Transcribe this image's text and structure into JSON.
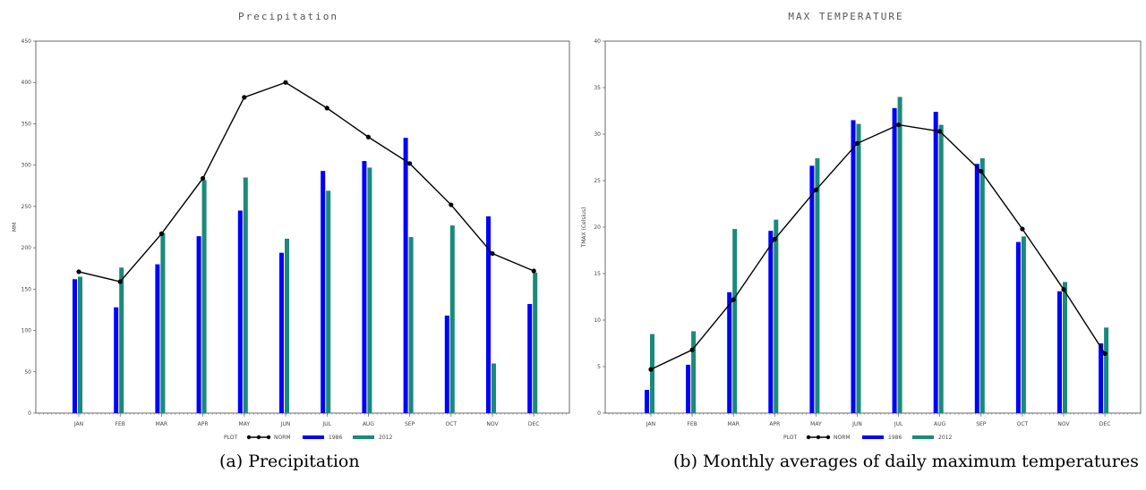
{
  "captions": [
    "(a) Precipitation",
    "(b) Monthly averages of daily maximum temperatures"
  ],
  "colors": {
    "norm": "#000000",
    "s1986": "#0000ff",
    "s2012": "#1a8a7a"
  },
  "chart_data": [
    {
      "type": "bar",
      "title": "Precipitation",
      "xlabel": "",
      "ylabel": "MM",
      "categories": [
        "JAN",
        "FEB",
        "MAR",
        "APR",
        "MAY",
        "JUN",
        "JUL",
        "AUG",
        "SEP",
        "OCT",
        "NOV",
        "DEC"
      ],
      "ylim": [
        0,
        450
      ],
      "yticks": [
        0,
        50,
        100,
        150,
        200,
        250,
        300,
        350,
        400,
        450
      ],
      "legend_title": "PLOT",
      "series": [
        {
          "name": "NORM",
          "type": "line",
          "values": [
            171,
            159,
            217,
            284,
            382,
            400,
            369,
            334,
            302,
            252,
            193,
            172
          ]
        },
        {
          "name": "1986",
          "type": "bar",
          "values": [
            162,
            128,
            180,
            214,
            245,
            194,
            293,
            305,
            333,
            118,
            238,
            132
          ]
        },
        {
          "name": "2012",
          "type": "bar",
          "values": [
            165,
            176,
            218,
            282,
            285,
            211,
            269,
            297,
            213,
            227,
            60,
            170
          ]
        }
      ]
    },
    {
      "type": "bar",
      "title": "MAX TEMPERATURE",
      "xlabel": "",
      "ylabel": "TMAX (Celsius)",
      "categories": [
        "JAN",
        "FEB",
        "MAR",
        "APR",
        "MAY",
        "JUN",
        "JUL",
        "AUG",
        "SEP",
        "OCT",
        "NOV",
        "DEC"
      ],
      "ylim": [
        0,
        40
      ],
      "yticks": [
        0,
        5,
        10,
        15,
        20,
        25,
        30,
        35,
        40
      ],
      "legend_title": "PLOT",
      "series": [
        {
          "name": "NORM",
          "type": "line",
          "values": [
            4.7,
            6.8,
            12.2,
            18.7,
            24.0,
            29.0,
            31.0,
            30.3,
            26.0,
            19.8,
            13.3,
            6.4
          ]
        },
        {
          "name": "1986",
          "type": "bar",
          "values": [
            2.5,
            5.2,
            13.0,
            19.6,
            26.6,
            31.5,
            32.8,
            32.4,
            26.8,
            18.4,
            13.1,
            7.5
          ]
        },
        {
          "name": "2012",
          "type": "bar",
          "values": [
            8.5,
            8.8,
            19.8,
            20.8,
            27.4,
            31.1,
            34.0,
            31.0,
            27.4,
            19.0,
            14.1,
            9.2
          ]
        }
      ]
    }
  ]
}
